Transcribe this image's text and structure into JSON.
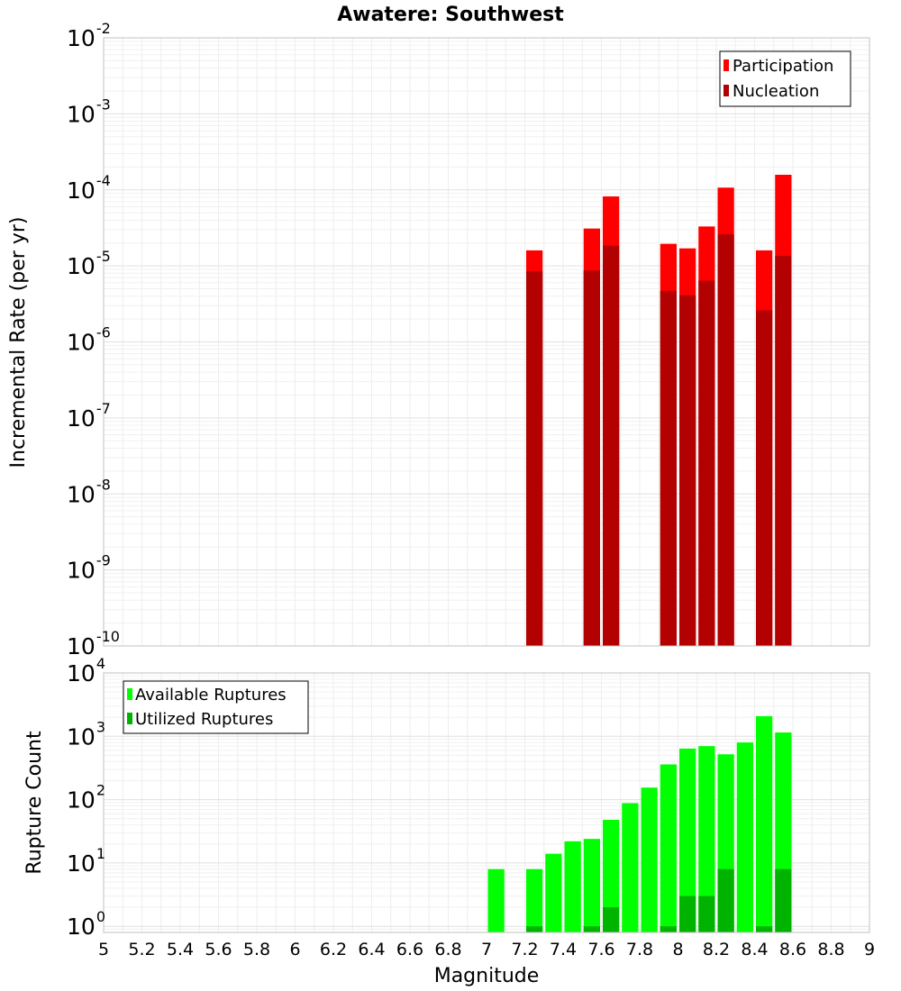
{
  "chart_data": [
    {
      "type": "bar",
      "title": "Awatere: Southwest",
      "xlabel": "",
      "ylabel": "Incremental Rate (per yr)",
      "yscale": "log",
      "ylim": [
        1e-10,
        0.01
      ],
      "xlim": [
        5,
        9
      ],
      "grid": true,
      "legend_position": "top-right",
      "y_ticks": [
        {
          "base": "10",
          "exp": "-10"
        },
        {
          "base": "10",
          "exp": "-9"
        },
        {
          "base": "10",
          "exp": "-8"
        },
        {
          "base": "10",
          "exp": "-7"
        },
        {
          "base": "10",
          "exp": "-6"
        },
        {
          "base": "10",
          "exp": "-5"
        },
        {
          "base": "10",
          "exp": "-4"
        },
        {
          "base": "10",
          "exp": "-3"
        },
        {
          "base": "10",
          "exp": "-2"
        }
      ],
      "series": [
        {
          "name": "Participation",
          "color": "#ff0000",
          "points": [
            {
              "x": 7.25,
              "y": 1.6e-05
            },
            {
              "x": 7.55,
              "y": 3.1e-05
            },
            {
              "x": 7.65,
              "y": 8.2e-05
            },
            {
              "x": 7.95,
              "y": 1.95e-05
            },
            {
              "x": 8.05,
              "y": 1.7e-05
            },
            {
              "x": 8.15,
              "y": 3.3e-05
            },
            {
              "x": 8.25,
              "y": 0.000107
            },
            {
              "x": 8.45,
              "y": 1.6e-05
            },
            {
              "x": 8.55,
              "y": 0.000158
            }
          ]
        },
        {
          "name": "Nucleation",
          "color": "#b30000",
          "points": [
            {
              "x": 7.25,
              "y": 8.5e-06
            },
            {
              "x": 7.55,
              "y": 8.7e-06
            },
            {
              "x": 7.65,
              "y": 1.85e-05
            },
            {
              "x": 7.95,
              "y": 4.7e-06
            },
            {
              "x": 8.05,
              "y": 4.1e-06
            },
            {
              "x": 8.15,
              "y": 6.4e-06
            },
            {
              "x": 8.25,
              "y": 2.6e-05
            },
            {
              "x": 8.45,
              "y": 2.6e-06
            },
            {
              "x": 8.55,
              "y": 1.35e-05
            }
          ]
        }
      ]
    },
    {
      "type": "bar",
      "title": "",
      "xlabel": "Magnitude",
      "ylabel": "Rupture Count",
      "yscale": "log",
      "ylim": [
        0.8,
        10000
      ],
      "xlim": [
        5,
        9
      ],
      "grid": true,
      "legend_position": "top-left",
      "y_ticks": [
        {
          "base": "10",
          "exp": "0"
        },
        {
          "base": "10",
          "exp": "1"
        },
        {
          "base": "10",
          "exp": "2"
        },
        {
          "base": "10",
          "exp": "3"
        },
        {
          "base": "10",
          "exp": "4"
        }
      ],
      "x_ticks": [
        "5",
        "5.2",
        "5.4",
        "5.6",
        "5.8",
        "6",
        "6.2",
        "6.4",
        "6.6",
        "6.8",
        "7",
        "7.2",
        "7.4",
        "7.6",
        "7.8",
        "8",
        "8.2",
        "8.4",
        "8.6",
        "8.8",
        "9"
      ],
      "series": [
        {
          "name": "Available Ruptures",
          "color": "#00ff00",
          "points": [
            {
              "x": 7.05,
              "y": 8
            },
            {
              "x": 7.25,
              "y": 8
            },
            {
              "x": 7.35,
              "y": 14
            },
            {
              "x": 7.45,
              "y": 22
            },
            {
              "x": 7.55,
              "y": 24
            },
            {
              "x": 7.65,
              "y": 48
            },
            {
              "x": 7.75,
              "y": 88
            },
            {
              "x": 7.85,
              "y": 155
            },
            {
              "x": 7.95,
              "y": 360
            },
            {
              "x": 8.05,
              "y": 640
            },
            {
              "x": 8.15,
              "y": 700
            },
            {
              "x": 8.25,
              "y": 520
            },
            {
              "x": 8.35,
              "y": 800
            },
            {
              "x": 8.45,
              "y": 2080
            },
            {
              "x": 8.55,
              "y": 1150
            }
          ]
        },
        {
          "name": "Utilized Ruptures",
          "color": "#00b300",
          "points": [
            {
              "x": 7.25,
              "y": 1
            },
            {
              "x": 7.55,
              "y": 1
            },
            {
              "x": 7.65,
              "y": 2
            },
            {
              "x": 7.95,
              "y": 1
            },
            {
              "x": 8.05,
              "y": 3
            },
            {
              "x": 8.15,
              "y": 3
            },
            {
              "x": 8.25,
              "y": 8
            },
            {
              "x": 8.45,
              "y": 1
            },
            {
              "x": 8.55,
              "y": 8
            }
          ]
        }
      ]
    }
  ]
}
